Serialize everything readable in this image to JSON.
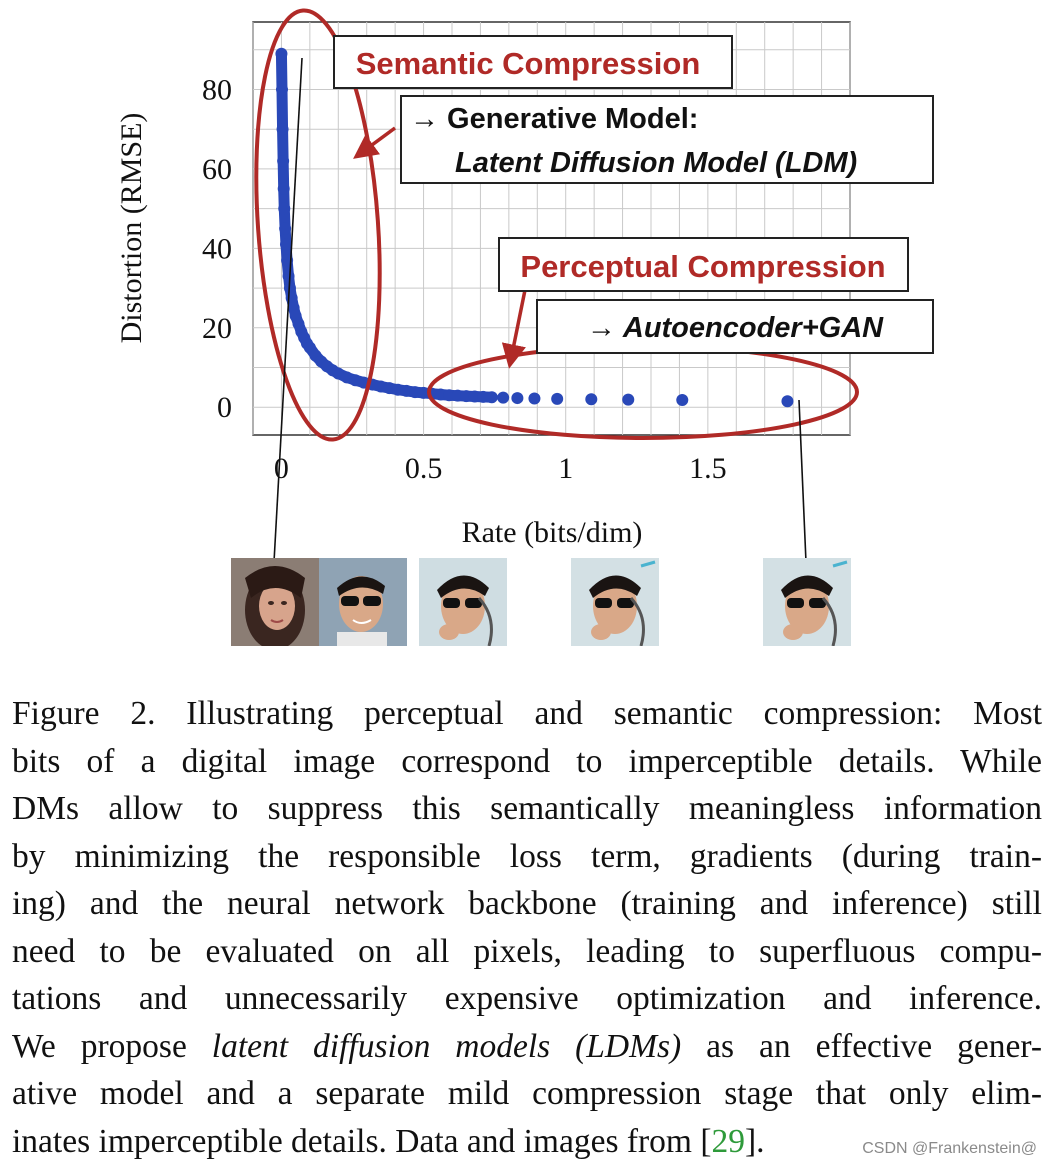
{
  "figure": {
    "chart_data": {
      "type": "scatter",
      "title": "",
      "xlabel": "Rate (bits/dim)",
      "ylabel": "Distortion (RMSE)",
      "xlim": [
        -0.1,
        2.0
      ],
      "ylim": [
        -7,
        97
      ],
      "xticks": [
        0,
        0.5,
        1,
        1.5
      ],
      "xtick_labels": [
        "0",
        "0.5",
        "1",
        "1.5"
      ],
      "yticks": [
        0,
        20,
        40,
        60,
        80
      ],
      "ytick_labels": [
        "0",
        "20",
        "40",
        "60",
        "80"
      ],
      "grid": true,
      "series": [
        {
          "color": "#2948b8",
          "x": [
            0.0,
            0.002,
            0.004,
            0.006,
            0.008,
            0.01,
            0.013,
            0.016,
            0.02,
            0.025,
            0.03,
            0.036,
            0.043,
            0.05,
            0.06,
            0.07,
            0.08,
            0.09,
            0.1,
            0.12,
            0.14,
            0.16,
            0.18,
            0.2,
            0.23,
            0.26,
            0.29,
            0.32,
            0.35,
            0.38,
            0.41,
            0.44,
            0.47,
            0.5,
            0.53,
            0.56,
            0.59,
            0.62,
            0.65,
            0.68,
            0.71,
            0.74,
            0.78,
            0.83,
            0.89,
            0.97,
            1.09,
            1.22,
            1.41,
            1.78
          ],
          "y": [
            89.0,
            80.0,
            70.0,
            62.0,
            55.0,
            50.0,
            45.0,
            41.0,
            37.0,
            33.0,
            30.0,
            27.5,
            25.0,
            23.0,
            21.0,
            19.0,
            17.5,
            16.0,
            15.0,
            13.0,
            11.5,
            10.3,
            9.3,
            8.5,
            7.5,
            6.8,
            6.2,
            5.7,
            5.2,
            4.8,
            4.4,
            4.1,
            3.8,
            3.6,
            3.4,
            3.2,
            3.0,
            2.9,
            2.8,
            2.7,
            2.6,
            2.5,
            2.4,
            2.3,
            2.2,
            2.1,
            2.0,
            1.9,
            1.8,
            1.5
          ]
        }
      ],
      "annotations": [
        "Semantic Compression",
        "Perceptual Compression"
      ],
      "annotation_colors": {
        "label": "#b02a27",
        "ellipse": "#b02a27"
      }
    },
    "boxes": {
      "semantic": "Semantic Compression",
      "generative_line1": "→ Generative Model:",
      "generative_line2": "Latent Diffusion Model (LDM)",
      "perceptual": "Perceptual Compression",
      "autoencoder": "→ Autoencoder+GAN"
    }
  },
  "caption": {
    "lines": [
      "Figure 2.  Illustrating perceptual and semantic compression: Most",
      "bits of a digital image correspond to imperceptible details. While",
      "DMs allow to suppress this semantically meaningless information",
      "by minimizing the responsible loss term, gradients (during train-",
      "ing) and the neural network backbone (training and inference) still",
      "need to be evaluated on all pixels, leading to superfluous compu-",
      "tations and unnecessarily expensive optimization and inference."
    ],
    "line8_pre": "We propose ",
    "line8_italic": "latent diffusion models (LDMs)",
    "line8_post": " as an effective gener-",
    "line9": "ative model and a separate mild compression stage that only elim-",
    "line10_pre": "inates imperceptible details. Data and images from [",
    "line10_cite": "29",
    "line10_post": "]."
  },
  "watermark": "CSDN @Frankenstein@"
}
